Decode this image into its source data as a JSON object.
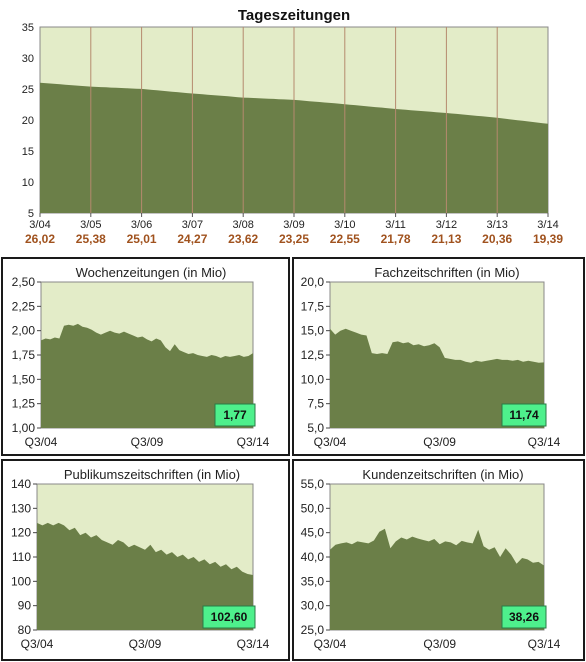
{
  "colors": {
    "plot_bg": "#e3ecc8",
    "area_fill": "#6b7f48",
    "gridline": "#b58a6e",
    "badge": "#4ef08c",
    "value_label": "#a0521e"
  },
  "chart_data": [
    {
      "type": "area",
      "title": "Tageszeitungen",
      "x_labels": [
        "3/04",
        "3/05",
        "3/06",
        "3/07",
        "3/08",
        "3/09",
        "3/10",
        "3/11",
        "3/12",
        "3/13",
        "3/14"
      ],
      "value_labels": [
        "26,02",
        "25,38",
        "25,01",
        "24,27",
        "23,62",
        "23,25",
        "22,55",
        "21,78",
        "21,13",
        "20,36",
        "19,39"
      ],
      "values": [
        26.02,
        25.38,
        25.01,
        24.27,
        23.62,
        23.25,
        22.55,
        21.78,
        21.13,
        20.36,
        19.39
      ],
      "ylim": [
        5,
        35
      ],
      "yticks": [
        5,
        10,
        15,
        20,
        25,
        30,
        35
      ],
      "grid": "vertical"
    },
    {
      "type": "area",
      "title": "Wochenzeitungen (in Mio)",
      "x_labels": [
        "Q3/04",
        "Q3/09",
        "Q3/14"
      ],
      "values": [
        1.9,
        1.92,
        1.91,
        1.93,
        1.92,
        2.05,
        2.06,
        2.05,
        2.07,
        2.04,
        2.03,
        2.01,
        1.98,
        1.96,
        1.98,
        2.0,
        1.98,
        1.97,
        1.99,
        1.97,
        1.95,
        1.93,
        1.94,
        1.91,
        1.89,
        1.92,
        1.9,
        1.83,
        1.79,
        1.86,
        1.8,
        1.78,
        1.76,
        1.77,
        1.75,
        1.74,
        1.73,
        1.75,
        1.74,
        1.72,
        1.74,
        1.73,
        1.74,
        1.75,
        1.73,
        1.74,
        1.77
      ],
      "ylim": [
        1.0,
        2.5
      ],
      "yticks": [
        "1,00",
        "1,25",
        "1,50",
        "1,75",
        "2,00",
        "2,25",
        "2,50"
      ],
      "badge": "1,77"
    },
    {
      "type": "area",
      "title": "Fachzeitschriften (in Mio)",
      "x_labels": [
        "Q3/04",
        "Q3/09",
        "Q3/14"
      ],
      "values": [
        15.2,
        14.6,
        15.0,
        15.2,
        15.0,
        14.8,
        14.6,
        14.5,
        12.7,
        12.6,
        12.7,
        12.6,
        13.8,
        13.9,
        13.7,
        13.8,
        13.5,
        13.6,
        13.4,
        13.5,
        13.7,
        13.3,
        12.2,
        12.1,
        12.0,
        12.0,
        11.8,
        11.7,
        11.9,
        11.8,
        11.9,
        12.0,
        12.1,
        12.0,
        12.0,
        11.9,
        12.0,
        11.8,
        11.9,
        11.8,
        11.7,
        11.74
      ],
      "ylim": [
        5.0,
        20.0
      ],
      "yticks": [
        "5,0",
        "7,5",
        "10,0",
        "12,5",
        "15,0",
        "17,5",
        "20,0"
      ],
      "badge": "11,74"
    },
    {
      "type": "area",
      "title": "Publikumszeitschriften (in Mio)",
      "x_labels": [
        "Q3/04",
        "Q3/09",
        "Q3/14"
      ],
      "values": [
        124,
        123,
        124,
        123,
        124,
        123,
        121,
        122,
        119,
        120,
        118,
        119,
        117,
        116,
        115,
        117,
        116,
        114,
        115,
        114,
        113,
        115,
        112,
        113,
        111,
        112,
        110,
        111,
        109,
        110,
        108,
        109,
        107,
        108,
        106,
        107,
        105,
        106,
        104,
        103,
        102.6
      ],
      "ylim": [
        80,
        140
      ],
      "yticks": [
        "80",
        "90",
        "100",
        "110",
        "120",
        "130",
        "140"
      ],
      "badge": "102,60"
    },
    {
      "type": "area",
      "title": "Kundenzeitschriften (in Mio)",
      "x_labels": [
        "Q3/04",
        "Q3/09",
        "Q3/14"
      ],
      "values": [
        41.5,
        42.5,
        42.8,
        43.0,
        42.6,
        43.2,
        43.0,
        42.8,
        43.4,
        45.2,
        45.8,
        41.8,
        43.2,
        44.0,
        43.6,
        44.2,
        43.8,
        43.5,
        43.2,
        43.7,
        42.6,
        43.2,
        43.0,
        42.4,
        43.3,
        43.0,
        42.8,
        45.6,
        42.2,
        41.5,
        42.0,
        40.0,
        41.8,
        40.5,
        38.6,
        39.8,
        39.5,
        38.8,
        39.0,
        38.26
      ],
      "ylim": [
        25.0,
        55.0
      ],
      "yticks": [
        "25,0",
        "30,0",
        "35,0",
        "40,0",
        "45,0",
        "50,0",
        "55,0"
      ],
      "badge": "38,26"
    }
  ]
}
